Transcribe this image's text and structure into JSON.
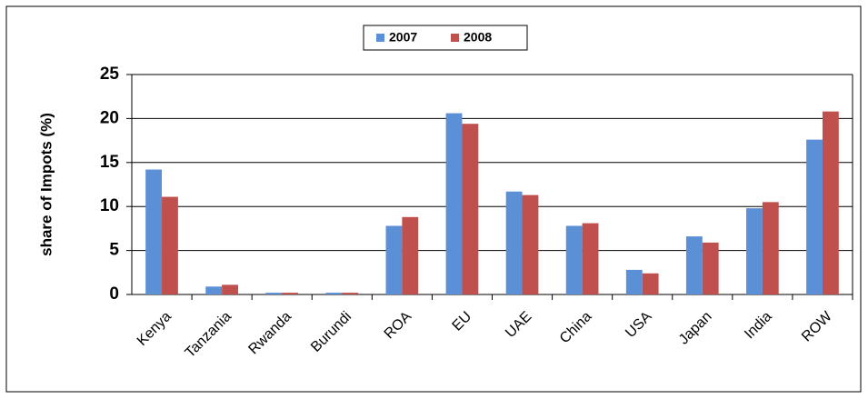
{
  "chart_data": {
    "type": "bar",
    "ylabel": "share of Impots (%)",
    "categories": [
      "Kenya",
      "Tanzania",
      "Rwanda",
      "Burundi",
      "ROA",
      "EU",
      "UAE",
      "China",
      "USA",
      "Japan",
      "India",
      "ROW"
    ],
    "series": [
      {
        "name": "2007",
        "color": "#5b8fd6",
        "values": [
          14.2,
          0.9,
          0.2,
          0.2,
          7.8,
          20.6,
          11.7,
          7.8,
          2.8,
          6.6,
          9.8,
          17.6
        ]
      },
      {
        "name": "2008",
        "color": "#c0504d",
        "values": [
          11.1,
          1.1,
          0.2,
          0.2,
          8.8,
          19.4,
          11.3,
          8.1,
          2.4,
          5.9,
          10.5,
          20.8
        ]
      }
    ],
    "ylim": [
      0,
      25
    ],
    "yticks": [
      0,
      5,
      10,
      15,
      20,
      25
    ],
    "grid": true,
    "legend": "top"
  }
}
